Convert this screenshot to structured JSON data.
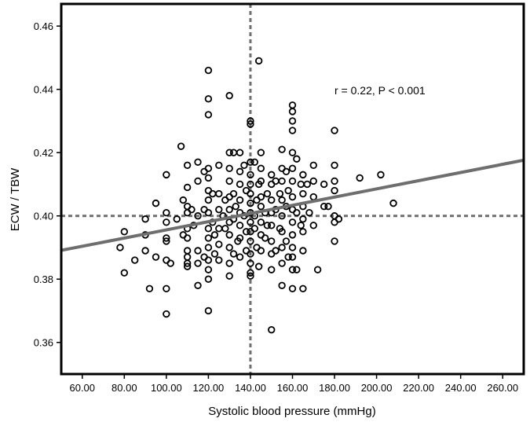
{
  "chart_data": {
    "type": "scatter",
    "xlabel": "Systolic blood pressure (mmHg)",
    "ylabel": "ECW / TBW",
    "xlim": [
      50,
      270
    ],
    "ylim": [
      0.35,
      0.467
    ],
    "x_ticks": [
      60,
      80,
      100,
      120,
      140,
      160,
      180,
      200,
      220,
      240,
      260
    ],
    "x_tick_labels": [
      "60.00",
      "80.00",
      "100.00",
      "120.00",
      "140.00",
      "160.00",
      "180.00",
      "200.00",
      "220.00",
      "240.00",
      "260.00"
    ],
    "y_ticks": [
      0.36,
      0.38,
      0.4,
      0.42,
      0.44,
      0.46
    ],
    "y_tick_labels": [
      "0.36",
      "0.38",
      "0.40",
      "0.42",
      "0.44",
      "0.46"
    ],
    "grid": false,
    "annotation": "r = 0.22, P < 0.001",
    "reference_lines": {
      "x": 140,
      "y": 0.4
    },
    "regression_line": {
      "x": [
        50,
        270
      ],
      "y": [
        0.3891,
        0.4176
      ]
    },
    "marker_color": "#000000",
    "regression_color": "#6e6e6e",
    "reference_color": "#6e6e6e",
    "points": [
      [
        78,
        0.39
      ],
      [
        80,
        0.395
      ],
      [
        80,
        0.382
      ],
      [
        85,
        0.386
      ],
      [
        90,
        0.399
      ],
      [
        90,
        0.394
      ],
      [
        90,
        0.389
      ],
      [
        92,
        0.377
      ],
      [
        95,
        0.404
      ],
      [
        95,
        0.387
      ],
      [
        100,
        0.413
      ],
      [
        100,
        0.401
      ],
      [
        100,
        0.398
      ],
      [
        100,
        0.393
      ],
      [
        100,
        0.392
      ],
      [
        100,
        0.386
      ],
      [
        100,
        0.377
      ],
      [
        100,
        0.369
      ],
      [
        102,
        0.385
      ],
      [
        105,
        0.399
      ],
      [
        107,
        0.422
      ],
      [
        108,
        0.405
      ],
      [
        108,
        0.394
      ],
      [
        110,
        0.416
      ],
      [
        110,
        0.409
      ],
      [
        110,
        0.403
      ],
      [
        110,
        0.401
      ],
      [
        110,
        0.396
      ],
      [
        110,
        0.393
      ],
      [
        110,
        0.389
      ],
      [
        110,
        0.387
      ],
      [
        110,
        0.385
      ],
      [
        110,
        0.384
      ],
      [
        112,
        0.402
      ],
      [
        113,
        0.397
      ],
      [
        115,
        0.417
      ],
      [
        115,
        0.411
      ],
      [
        115,
        0.4
      ],
      [
        115,
        0.389
      ],
      [
        115,
        0.385
      ],
      [
        115,
        0.378
      ],
      [
        118,
        0.414
      ],
      [
        118,
        0.402
      ],
      [
        118,
        0.387
      ],
      [
        120,
        0.446
      ],
      [
        120,
        0.437
      ],
      [
        120,
        0.432
      ],
      [
        120,
        0.415
      ],
      [
        120,
        0.412
      ],
      [
        120,
        0.408
      ],
      [
        120,
        0.405
      ],
      [
        120,
        0.401
      ],
      [
        120,
        0.396
      ],
      [
        120,
        0.393
      ],
      [
        120,
        0.39
      ],
      [
        120,
        0.386
      ],
      [
        120,
        0.383
      ],
      [
        120,
        0.38
      ],
      [
        120,
        0.37
      ],
      [
        122,
        0.407
      ],
      [
        122,
        0.398
      ],
      [
        123,
        0.394
      ],
      [
        123,
        0.388
      ],
      [
        125,
        0.416
      ],
      [
        125,
        0.407
      ],
      [
        125,
        0.402
      ],
      [
        125,
        0.396
      ],
      [
        125,
        0.391
      ],
      [
        125,
        0.386
      ],
      [
        127,
        0.4
      ],
      [
        128,
        0.405
      ],
      [
        128,
        0.396
      ],
      [
        130,
        0.438
      ],
      [
        130,
        0.42
      ],
      [
        130,
        0.415
      ],
      [
        130,
        0.411
      ],
      [
        130,
        0.406
      ],
      [
        130,
        0.402
      ],
      [
        130,
        0.398
      ],
      [
        130,
        0.394
      ],
      [
        130,
        0.39
      ],
      [
        130,
        0.385
      ],
      [
        130,
        0.381
      ],
      [
        132,
        0.42
      ],
      [
        132,
        0.407
      ],
      [
        132,
        0.399
      ],
      [
        132,
        0.388
      ],
      [
        133,
        0.403
      ],
      [
        134,
        0.392
      ],
      [
        135,
        0.42
      ],
      [
        135,
        0.414
      ],
      [
        135,
        0.41
      ],
      [
        135,
        0.405
      ],
      [
        135,
        0.401
      ],
      [
        135,
        0.397
      ],
      [
        135,
        0.393
      ],
      [
        135,
        0.387
      ],
      [
        137,
        0.416
      ],
      [
        137,
        0.4
      ],
      [
        138,
        0.408
      ],
      [
        138,
        0.395
      ],
      [
        138,
        0.389
      ],
      [
        140,
        0.43
      ],
      [
        140,
        0.429
      ],
      [
        140,
        0.417
      ],
      [
        140,
        0.413
      ],
      [
        140,
        0.41
      ],
      [
        140,
        0.407
      ],
      [
        140,
        0.404
      ],
      [
        140,
        0.401
      ],
      [
        140,
        0.398
      ],
      [
        140,
        0.395
      ],
      [
        140,
        0.392
      ],
      [
        140,
        0.388
      ],
      [
        140,
        0.385
      ],
      [
        140,
        0.382
      ],
      [
        140,
        0.381
      ],
      [
        142,
        0.417
      ],
      [
        142,
        0.4
      ],
      [
        142,
        0.396
      ],
      [
        143,
        0.405
      ],
      [
        143,
        0.39
      ],
      [
        144,
        0.449
      ],
      [
        144,
        0.41
      ],
      [
        144,
        0.384
      ],
      [
        145,
        0.42
      ],
      [
        145,
        0.415
      ],
      [
        145,
        0.411
      ],
      [
        145,
        0.406
      ],
      [
        145,
        0.403
      ],
      [
        145,
        0.398
      ],
      [
        145,
        0.394
      ],
      [
        145,
        0.389
      ],
      [
        147,
        0.401
      ],
      [
        147,
        0.393
      ],
      [
        148,
        0.407
      ],
      [
        148,
        0.397
      ],
      [
        150,
        0.413
      ],
      [
        150,
        0.41
      ],
      [
        150,
        0.405
      ],
      [
        150,
        0.401
      ],
      [
        150,
        0.397
      ],
      [
        150,
        0.392
      ],
      [
        150,
        0.388
      ],
      [
        150,
        0.383
      ],
      [
        150,
        0.364
      ],
      [
        152,
        0.411
      ],
      [
        152,
        0.402
      ],
      [
        152,
        0.389
      ],
      [
        154,
        0.407
      ],
      [
        154,
        0.396
      ],
      [
        155,
        0.421
      ],
      [
        155,
        0.415
      ],
      [
        155,
        0.411
      ],
      [
        155,
        0.405
      ],
      [
        155,
        0.4
      ],
      [
        155,
        0.395
      ],
      [
        155,
        0.39
      ],
      [
        155,
        0.385
      ],
      [
        155,
        0.378
      ],
      [
        157,
        0.414
      ],
      [
        157,
        0.403
      ],
      [
        157,
        0.392
      ],
      [
        158,
        0.408
      ],
      [
        158,
        0.387
      ],
      [
        160,
        0.435
      ],
      [
        160,
        0.433
      ],
      [
        160,
        0.43
      ],
      [
        160,
        0.427
      ],
      [
        160,
        0.42
      ],
      [
        160,
        0.415
      ],
      [
        160,
        0.411
      ],
      [
        160,
        0.406
      ],
      [
        160,
        0.402
      ],
      [
        160,
        0.398
      ],
      [
        160,
        0.394
      ],
      [
        160,
        0.39
      ],
      [
        160,
        0.387
      ],
      [
        160,
        0.383
      ],
      [
        160,
        0.377
      ],
      [
        162,
        0.418
      ],
      [
        162,
        0.401
      ],
      [
        162,
        0.383
      ],
      [
        164,
        0.41
      ],
      [
        164,
        0.397
      ],
      [
        165,
        0.413
      ],
      [
        165,
        0.407
      ],
      [
        165,
        0.403
      ],
      [
        165,
        0.399
      ],
      [
        165,
        0.395
      ],
      [
        165,
        0.389
      ],
      [
        165,
        0.377
      ],
      [
        167,
        0.41
      ],
      [
        168,
        0.401
      ],
      [
        170,
        0.416
      ],
      [
        170,
        0.411
      ],
      [
        170,
        0.406
      ],
      [
        170,
        0.397
      ],
      [
        172,
        0.383
      ],
      [
        175,
        0.41
      ],
      [
        175,
        0.403
      ],
      [
        177,
        0.403
      ],
      [
        180,
        0.427
      ],
      [
        180,
        0.416
      ],
      [
        180,
        0.411
      ],
      [
        180,
        0.408
      ],
      [
        180,
        0.4
      ],
      [
        180,
        0.398
      ],
      [
        180,
        0.392
      ],
      [
        182,
        0.399
      ],
      [
        192,
        0.412
      ],
      [
        202,
        0.413
      ],
      [
        208,
        0.404
      ]
    ]
  }
}
